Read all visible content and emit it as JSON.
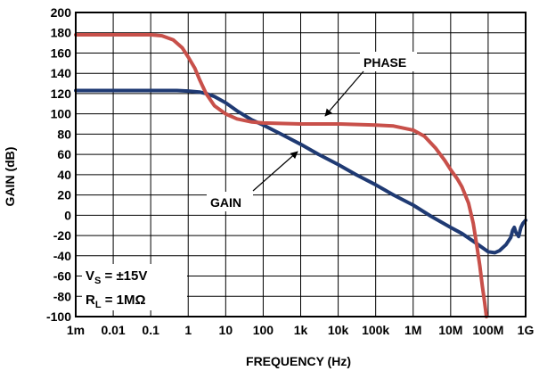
{
  "chart_data": {
    "type": "line",
    "xlabel": "FREQUENCY (Hz)",
    "ylabel": "GAIN (dB)",
    "x_scale": "log",
    "x_range_hz": [
      0.001,
      1000000000
    ],
    "ylim": [
      -100,
      200
    ],
    "y_ticks": [
      200,
      180,
      160,
      140,
      120,
      100,
      80,
      60,
      40,
      20,
      0,
      -20,
      -40,
      -60,
      -80,
      -100
    ],
    "x_ticks": [
      {
        "hz": 0.001,
        "label": "1m"
      },
      {
        "hz": 0.01,
        "label": "0.01"
      },
      {
        "hz": 0.1,
        "label": "0.1"
      },
      {
        "hz": 1,
        "label": "1"
      },
      {
        "hz": 10,
        "label": "10"
      },
      {
        "hz": 100,
        "label": "100"
      },
      {
        "hz": 1000,
        "label": "1k"
      },
      {
        "hz": 10000,
        "label": "10k"
      },
      {
        "hz": 100000,
        "label": "100k"
      },
      {
        "hz": 1000000,
        "label": "1M"
      },
      {
        "hz": 10000000,
        "label": "10M"
      },
      {
        "hz": 100000000,
        "label": "100M"
      },
      {
        "hz": 1000000000,
        "label": "1G"
      }
    ],
    "grid": true,
    "series": [
      {
        "name": "GAIN",
        "color": "#1f3a73",
        "points": [
          [
            0.001,
            123
          ],
          [
            0.01,
            123
          ],
          [
            0.1,
            123
          ],
          [
            0.5,
            123
          ],
          [
            1,
            122.5
          ],
          [
            2,
            121.5
          ],
          [
            3,
            120
          ],
          [
            5,
            117
          ],
          [
            10,
            111
          ],
          [
            20,
            103
          ],
          [
            50,
            94
          ],
          [
            100,
            89
          ],
          [
            300,
            80
          ],
          [
            1000,
            70
          ],
          [
            3000,
            60
          ],
          [
            10000,
            50
          ],
          [
            30000,
            40
          ],
          [
            100000,
            30
          ],
          [
            300000,
            20
          ],
          [
            1000000,
            10
          ],
          [
            3000000,
            -1
          ],
          [
            10000000,
            -12
          ],
          [
            20000000,
            -18
          ],
          [
            50000000,
            -28
          ],
          [
            100000000,
            -36
          ],
          [
            150000000,
            -37
          ],
          [
            200000000,
            -35
          ],
          [
            300000000,
            -29
          ],
          [
            400000000,
            -22
          ],
          [
            450000000,
            -15
          ],
          [
            500000000,
            -12
          ],
          [
            550000000,
            -17
          ],
          [
            650000000,
            -21
          ],
          [
            750000000,
            -12
          ],
          [
            850000000,
            -8
          ],
          [
            1000000000,
            -5
          ]
        ]
      },
      {
        "name": "PHASE",
        "color": "#c8504a",
        "points": [
          [
            0.001,
            178
          ],
          [
            0.01,
            178
          ],
          [
            0.1,
            178
          ],
          [
            0.2,
            177
          ],
          [
            0.4,
            173
          ],
          [
            0.7,
            165
          ],
          [
            1,
            156
          ],
          [
            1.5,
            145
          ],
          [
            2,
            134
          ],
          [
            3,
            120
          ],
          [
            5,
            108
          ],
          [
            10,
            100
          ],
          [
            20,
            95
          ],
          [
            50,
            92
          ],
          [
            100,
            91
          ],
          [
            1000,
            90
          ],
          [
            10000,
            90
          ],
          [
            100000,
            89
          ],
          [
            300000,
            88
          ],
          [
            1000000,
            84
          ],
          [
            2000000,
            78
          ],
          [
            4000000,
            66
          ],
          [
            7000000,
            54
          ],
          [
            10000000,
            45
          ],
          [
            15000000,
            36
          ],
          [
            20000000,
            28
          ],
          [
            30000000,
            12
          ],
          [
            40000000,
            -8
          ],
          [
            50000000,
            -30
          ],
          [
            60000000,
            -50
          ],
          [
            70000000,
            -70
          ],
          [
            80000000,
            -85
          ],
          [
            90000000,
            -100
          ]
        ]
      }
    ],
    "annotations": [
      {
        "text": "PHASE",
        "points_to": "PHASE"
      },
      {
        "text": "GAIN",
        "points_to": "GAIN"
      }
    ],
    "conditions": {
      "vs": {
        "main": "V",
        "sub": "S",
        "rest": " = ±15V"
      },
      "rl": {
        "main": "R",
        "sub": "L",
        "rest": " = 1MΩ"
      }
    }
  }
}
